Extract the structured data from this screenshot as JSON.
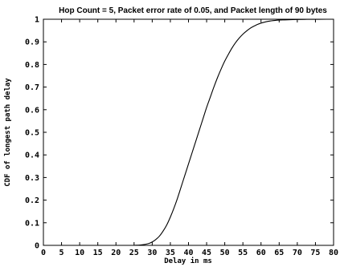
{
  "chart_data": {
    "type": "line",
    "title": "Hop Count = 5, Packet error rate of 0.05, and Packet length of 90 bytes",
    "xlabel": "Delay in ms",
    "ylabel": "CDF of longest path delay",
    "xlim": [
      0,
      80
    ],
    "ylim": [
      0,
      1
    ],
    "xticks": [
      "0",
      "5",
      "10",
      "15",
      "20",
      "25",
      "30",
      "35",
      "40",
      "45",
      "50",
      "55",
      "60",
      "65",
      "70",
      "75",
      "80"
    ],
    "yticks": [
      "0",
      "0.1",
      "0.2",
      "0.3",
      "0.4",
      "0.5",
      "0.6",
      "0.7",
      "0.8",
      "0.9",
      "1"
    ],
    "grid": false,
    "series": [
      {
        "x": [
          25,
          27,
          29,
          30,
          31,
          32,
          33,
          34,
          35,
          36,
          37,
          38,
          39,
          40,
          41,
          42,
          43,
          44,
          45,
          46,
          47,
          48,
          49,
          50,
          51,
          52,
          53,
          54,
          55,
          56,
          57,
          58,
          59,
          60,
          62,
          64,
          66,
          68,
          70,
          72,
          74,
          76,
          78,
          80
        ],
        "y": [
          0.0,
          0.002,
          0.008,
          0.015,
          0.026,
          0.041,
          0.063,
          0.09,
          0.125,
          0.165,
          0.21,
          0.26,
          0.31,
          0.36,
          0.41,
          0.46,
          0.51,
          0.56,
          0.61,
          0.655,
          0.7,
          0.742,
          0.78,
          0.815,
          0.845,
          0.873,
          0.897,
          0.917,
          0.934,
          0.948,
          0.96,
          0.969,
          0.977,
          0.983,
          0.991,
          0.995,
          0.997,
          0.998,
          0.999,
          0.9995,
          0.9998,
          0.9999,
          1.0,
          1.0
        ]
      }
    ]
  }
}
